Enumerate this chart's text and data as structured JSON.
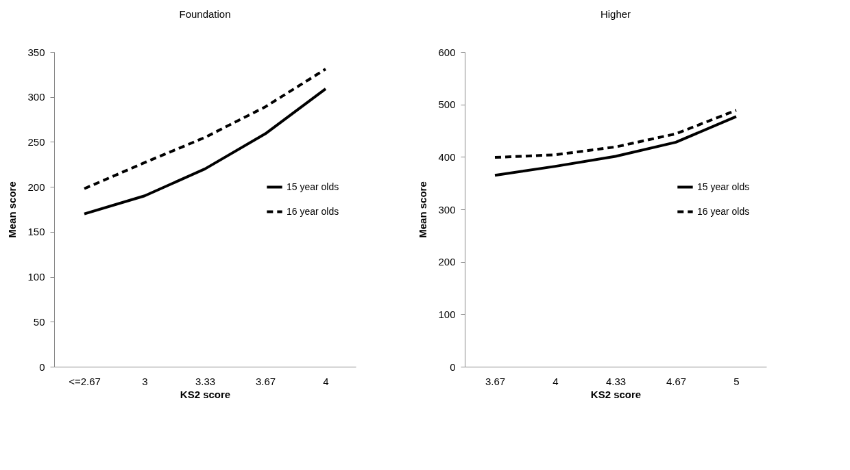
{
  "chart_data": [
    {
      "type": "line",
      "title": "Foundation",
      "xlabel": "KS2 score",
      "ylabel": "Mean score",
      "categories": [
        "<=2.67",
        "3",
        "3.33",
        "3.67",
        "4"
      ],
      "ylim": [
        0,
        350
      ],
      "yticks": [
        0,
        50,
        100,
        150,
        200,
        250,
        300,
        350
      ],
      "grid": false,
      "legend": "right",
      "marker": "none",
      "series": [
        {
          "name": "15 year olds",
          "color": "#000000",
          "line_style": "solid",
          "values": [
            170,
            190,
            220,
            259,
            309
          ]
        },
        {
          "name": "16 year olds",
          "color": "#000000",
          "line_style": "dashed",
          "values": [
            198,
            227,
            255,
            289,
            331
          ]
        }
      ]
    },
    {
      "type": "line",
      "title": "Higher",
      "xlabel": "KS2 score",
      "ylabel": "Mean score",
      "categories": [
        "3.67",
        "4",
        "4.33",
        "4.67",
        "5"
      ],
      "ylim": [
        0,
        600
      ],
      "yticks": [
        0,
        100,
        200,
        300,
        400,
        500,
        600
      ],
      "grid": false,
      "legend": "right",
      "marker": "none",
      "series": [
        {
          "name": "15 year olds",
          "color": "#000000",
          "line_style": "solid",
          "values": [
            365,
            382,
            401,
            428,
            477
          ]
        },
        {
          "name": "16 year olds",
          "color": "#000000",
          "line_style": "dashed",
          "values": [
            399,
            404,
            419,
            444,
            489
          ]
        }
      ]
    }
  ]
}
